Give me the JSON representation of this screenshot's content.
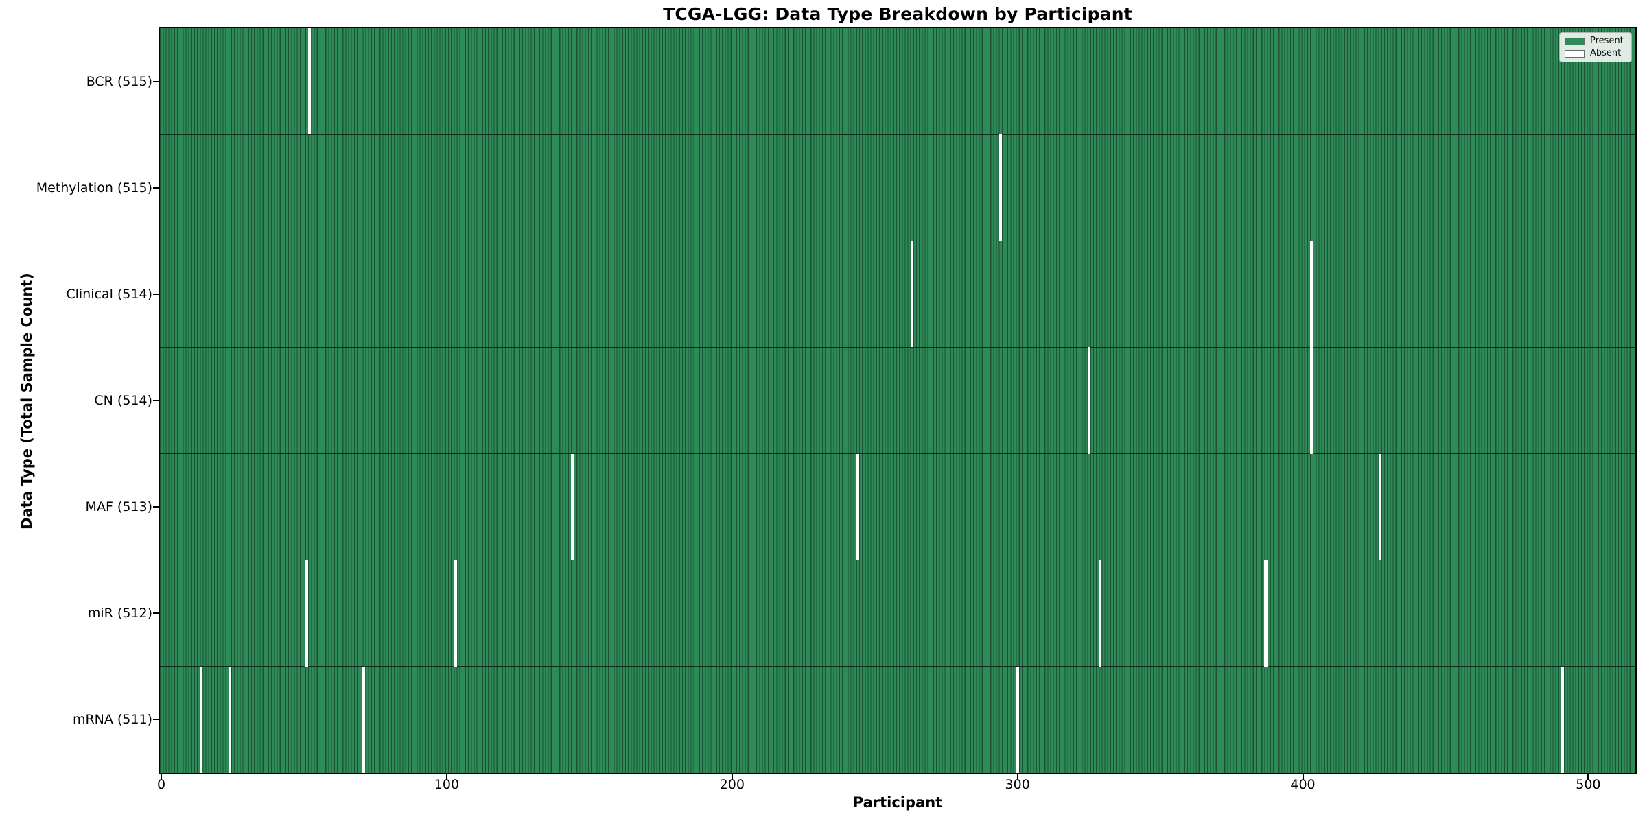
{
  "chart_data": {
    "type": "heatmap",
    "title": "TCGA-LGG: Data Type Breakdown by Participant",
    "xlabel": "Participant",
    "ylabel": "Data Type (Total Sample Count)",
    "x_ticks": [
      0,
      100,
      200,
      300,
      400,
      500
    ],
    "xlim": [
      -0.5,
      516.5
    ],
    "n_participants": 516,
    "grid": false,
    "legend_position": "upper right",
    "legend_items": [
      {
        "label": "Present",
        "color": "#2e8b57"
      },
      {
        "label": "Absent",
        "color": "#ffffff"
      }
    ],
    "colors": {
      "present": "#2e8b57",
      "absent": "#ffffff",
      "bar_edge": "#1b5134",
      "row_separator": "#102c1d",
      "spine": "#000000"
    },
    "rows": [
      {
        "label": "BCR (515)",
        "data_type": "BCR",
        "total": 515,
        "absent_participants": [
          52
        ]
      },
      {
        "label": "Methylation (515)",
        "data_type": "Methylation",
        "total": 515,
        "absent_participants": [
          294
        ]
      },
      {
        "label": "Clinical (514)",
        "data_type": "Clinical",
        "total": 514,
        "absent_participants": [
          263,
          403
        ]
      },
      {
        "label": "CN (514)",
        "data_type": "CN",
        "total": 514,
        "absent_participants": [
          325,
          403
        ]
      },
      {
        "label": "MAF (513)",
        "data_type": "MAF",
        "total": 513,
        "absent_participants": [
          144,
          244,
          427
        ]
      },
      {
        "label": "miR (512)",
        "data_type": "miR",
        "total": 512,
        "absent_participants": [
          51,
          103,
          329,
          387
        ]
      },
      {
        "label": "mRNA (511)",
        "data_type": "mRNA",
        "total": 511,
        "absent_participants": [
          14,
          24,
          71,
          300,
          491
        ]
      }
    ]
  }
}
